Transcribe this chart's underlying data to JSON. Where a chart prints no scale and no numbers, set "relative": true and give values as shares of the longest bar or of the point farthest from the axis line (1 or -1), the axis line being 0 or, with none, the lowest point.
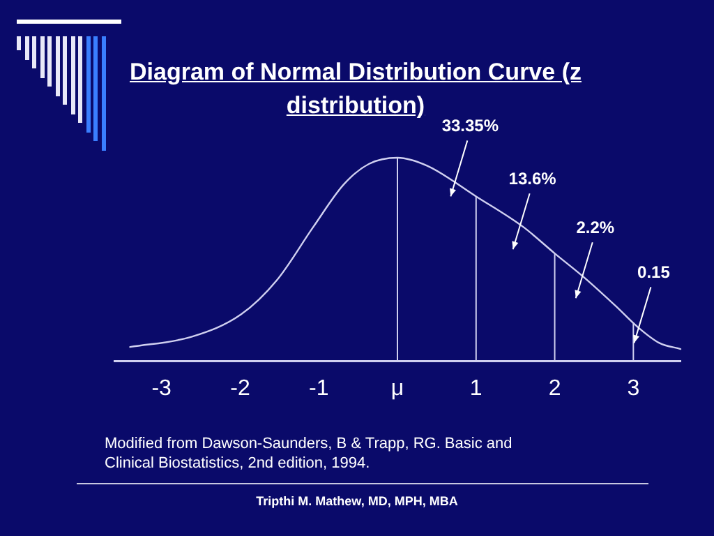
{
  "chart_data": {
    "type": "line",
    "title": "Diagram of Normal Distribution Curve (z distribution)",
    "relative": true,
    "x": [
      -3.4,
      -2.62,
      -1.99,
      -1.53,
      -1.07,
      -0.68,
      -0.36,
      0,
      0.38,
      1.0,
      1.6,
      2.0,
      2.38,
      2.78,
      3.05,
      3.33,
      3.6
    ],
    "series": [
      {
        "color": "#d0d0f0",
        "values": [
          0.07,
          0.12,
          0.23,
          0.4,
          0.66,
          0.87,
          0.97,
          1.0,
          0.96,
          0.81,
          0.66,
          0.53,
          0.41,
          0.27,
          0.17,
          0.09,
          0.06
        ]
      }
    ],
    "xlim": [
      -3.6,
      3.6
    ],
    "xticks": [
      -3,
      -2,
      -1,
      {
        "value": 0,
        "label": "μ"
      },
      1,
      2,
      3
    ],
    "ref_lines": [
      {
        "axis": "x",
        "value": 0,
        "color": "#d0d0f0"
      },
      {
        "axis": "x",
        "value": 1,
        "color": "#d0d0f0"
      },
      {
        "axis": "x",
        "value": 2,
        "color": "#d0d0f0"
      },
      {
        "axis": "x",
        "value": 3,
        "color": "#d0d0f0"
      }
    ],
    "annotations": [
      "33.35%",
      "13.6%",
      "2.2%",
      "0.15",
      "Modified from Dawson-Saunders, B & Trapp, RG. Basic and Clinical Biostatistics, 2nd edition, 1994.",
      "Tripthi M. Mathew, MD, MPH, MBA"
    ],
    "marker": "none",
    "grid": false,
    "legend": false,
    "tick_labels": "x"
  }
}
